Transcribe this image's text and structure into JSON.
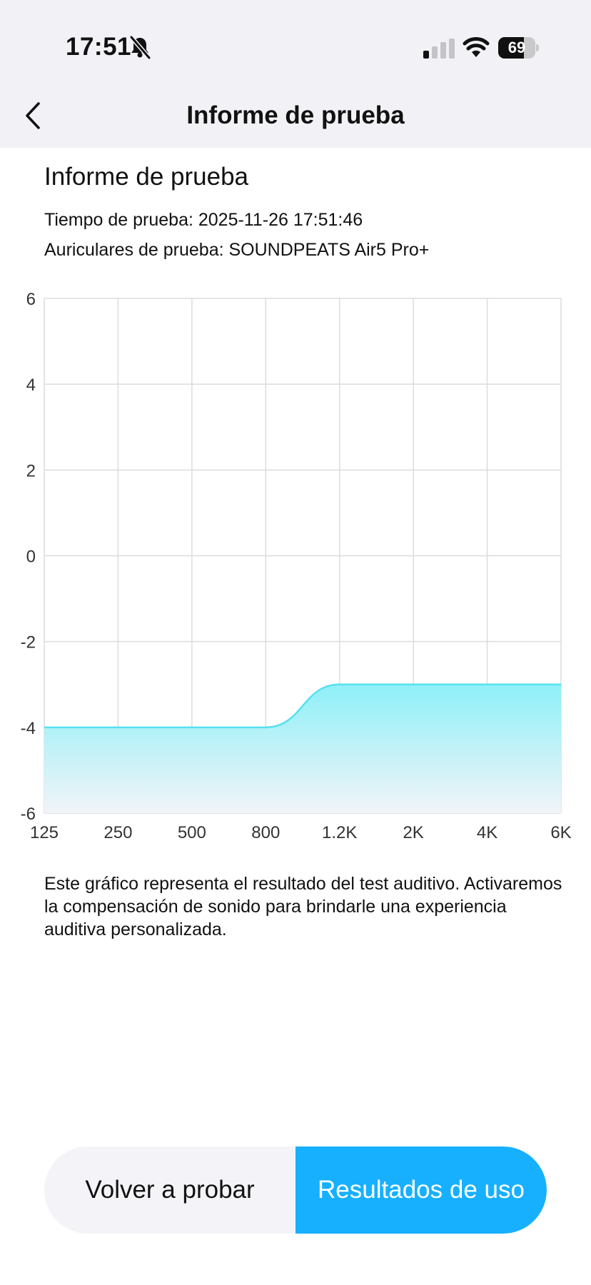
{
  "status_bar": {
    "time": "17:51",
    "battery_level": "69",
    "icons": [
      "bell-slash-icon",
      "cellular-signal-icon",
      "wifi-icon",
      "battery-icon"
    ]
  },
  "nav": {
    "title": "Informe de prueba",
    "back_icon": "chevron-left-icon"
  },
  "report": {
    "title": "Informe de prueba",
    "test_time": "Tiempo de prueba: 2025-11-26 17:51:46",
    "test_headphones": "Auriculares de prueba: SOUNDPEATS Air5 Pro+"
  },
  "chart_data": {
    "type": "area",
    "x": [
      "125",
      "250",
      "500",
      "800",
      "1.2K",
      "2K",
      "4K",
      "6K"
    ],
    "values": [
      -4,
      -4,
      -4,
      -4,
      -3,
      -3,
      -3,
      -3
    ],
    "ylim": [
      -6,
      6
    ],
    "yticks": [
      "6",
      "4",
      "2",
      "0",
      "-2",
      "-4",
      "-6"
    ],
    "ytick_values": [
      6,
      4,
      2,
      0,
      -2,
      -4,
      -6
    ],
    "grid": true,
    "colors": {
      "line": "#58e0f0",
      "fill_top": "#8ef0f8",
      "fill_bottom": "#f2f4f8",
      "grid": "#dcdce0"
    }
  },
  "description": "Este gráfico representa el resultado del test auditivo. Activaremos la compensación de sonido para brindarle una experiencia auditiva personalizada.",
  "buttons": {
    "retry_label": "Volver a probar",
    "use_label": "Resultados de uso"
  },
  "colors": {
    "accent": "#17b0ff",
    "header_bg": "#f2f2f6"
  }
}
